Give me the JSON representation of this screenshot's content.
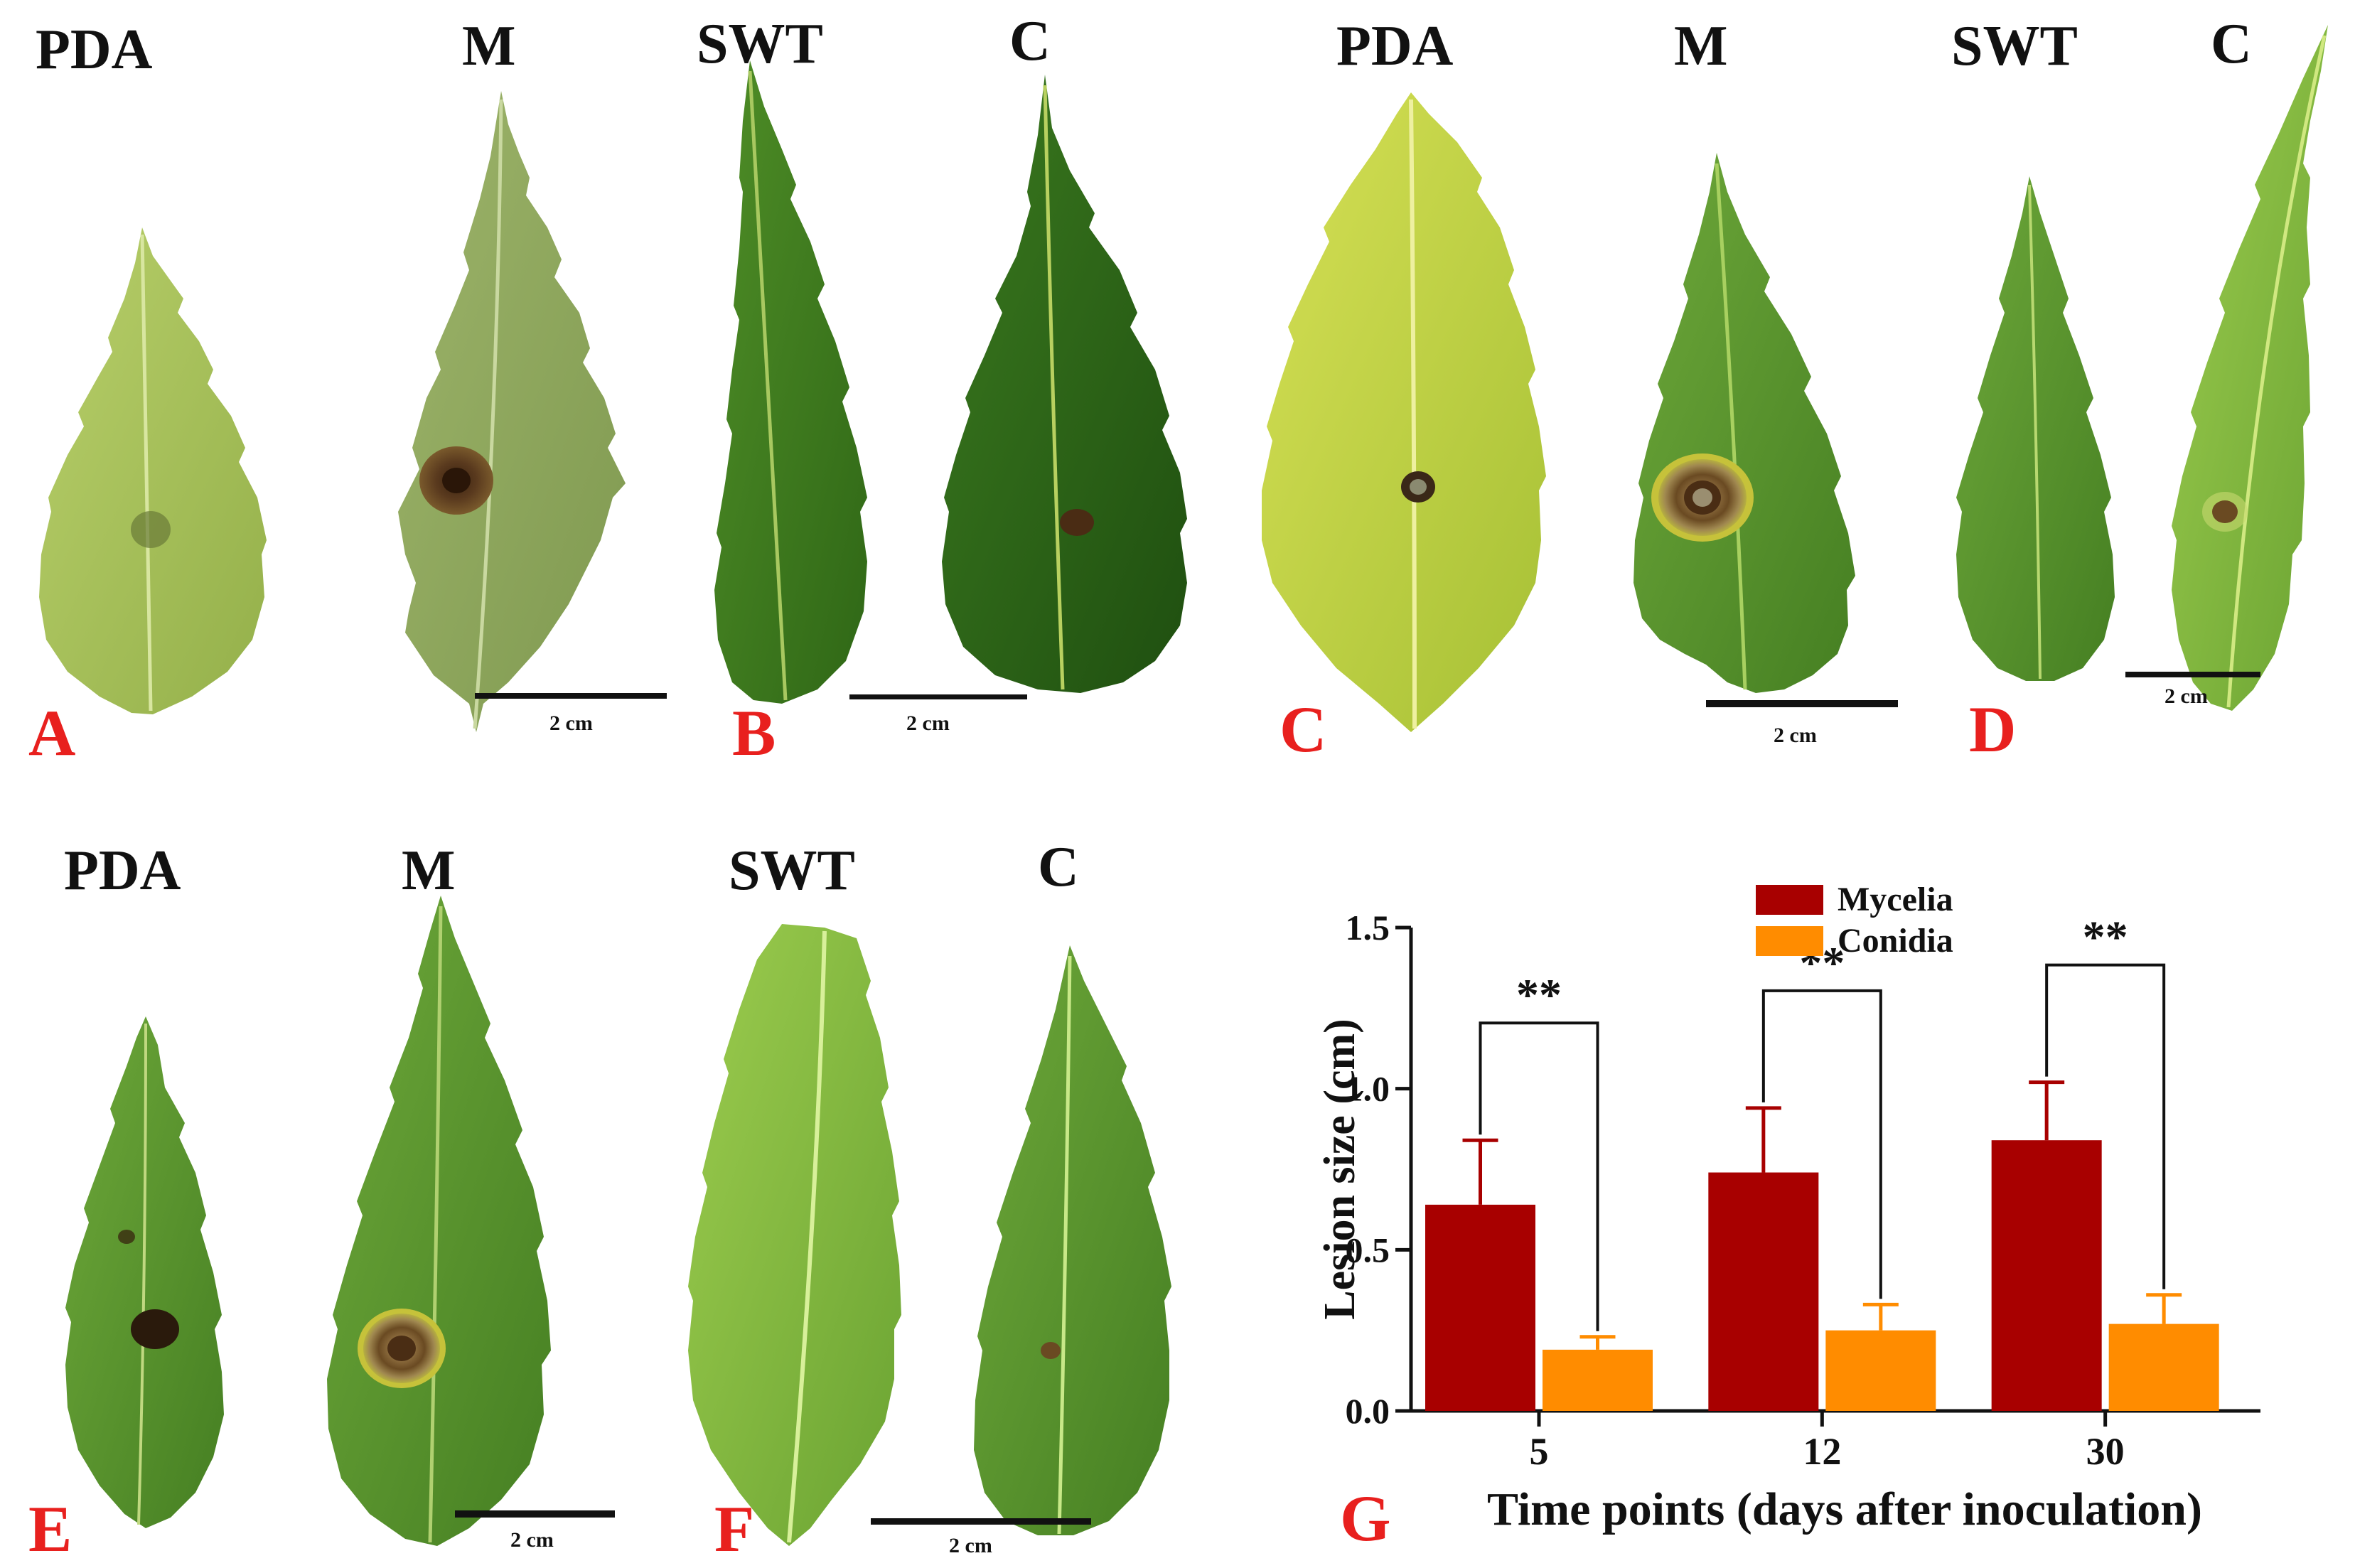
{
  "panels": {
    "A": {
      "letter": "A",
      "labels": [
        "PDA",
        "M"
      ],
      "scale": "2 cm"
    },
    "B": {
      "letter": "B",
      "labels": [
        "SWT",
        "C"
      ],
      "scale": "2 cm"
    },
    "C": {
      "letter": "C",
      "labels": [
        "PDA",
        "M"
      ],
      "scale": "2 cm"
    },
    "D": {
      "letter": "D",
      "labels": [
        "SWT",
        "C"
      ],
      "scale": "2 cm"
    },
    "E": {
      "letter": "E",
      "labels": [
        "PDA",
        "M"
      ],
      "scale": "2 cm"
    },
    "F": {
      "letter": "F",
      "labels": [
        "SWT",
        "C"
      ],
      "scale": "2 cm"
    },
    "G": {
      "letter": "G"
    }
  },
  "colors": {
    "panel_letter": "#e8201e",
    "mycelia": "#a80000",
    "conidia": "#ff8c00"
  },
  "chart_data": {
    "type": "bar",
    "categories": [
      "5",
      "12",
      "30"
    ],
    "series": [
      {
        "name": "Mycelia",
        "values": [
          0.64,
          0.74,
          0.84
        ],
        "errors": [
          0.2,
          0.2,
          0.18
        ],
        "color": "#a80000"
      },
      {
        "name": "Conidia",
        "values": [
          0.19,
          0.25,
          0.27
        ],
        "errors": [
          0.04,
          0.08,
          0.09
        ],
        "color": "#ff8c00"
      }
    ],
    "significance": [
      "**",
      "**",
      "**"
    ],
    "xlabel": "Time points (days after inoculation)",
    "ylabel": "Lesion size (cm)",
    "ylim": [
      0,
      1.5
    ],
    "yticks": [
      "0.0",
      "0.5",
      "1.0",
      "1.5"
    ],
    "grid": false,
    "legend_position": "top"
  }
}
